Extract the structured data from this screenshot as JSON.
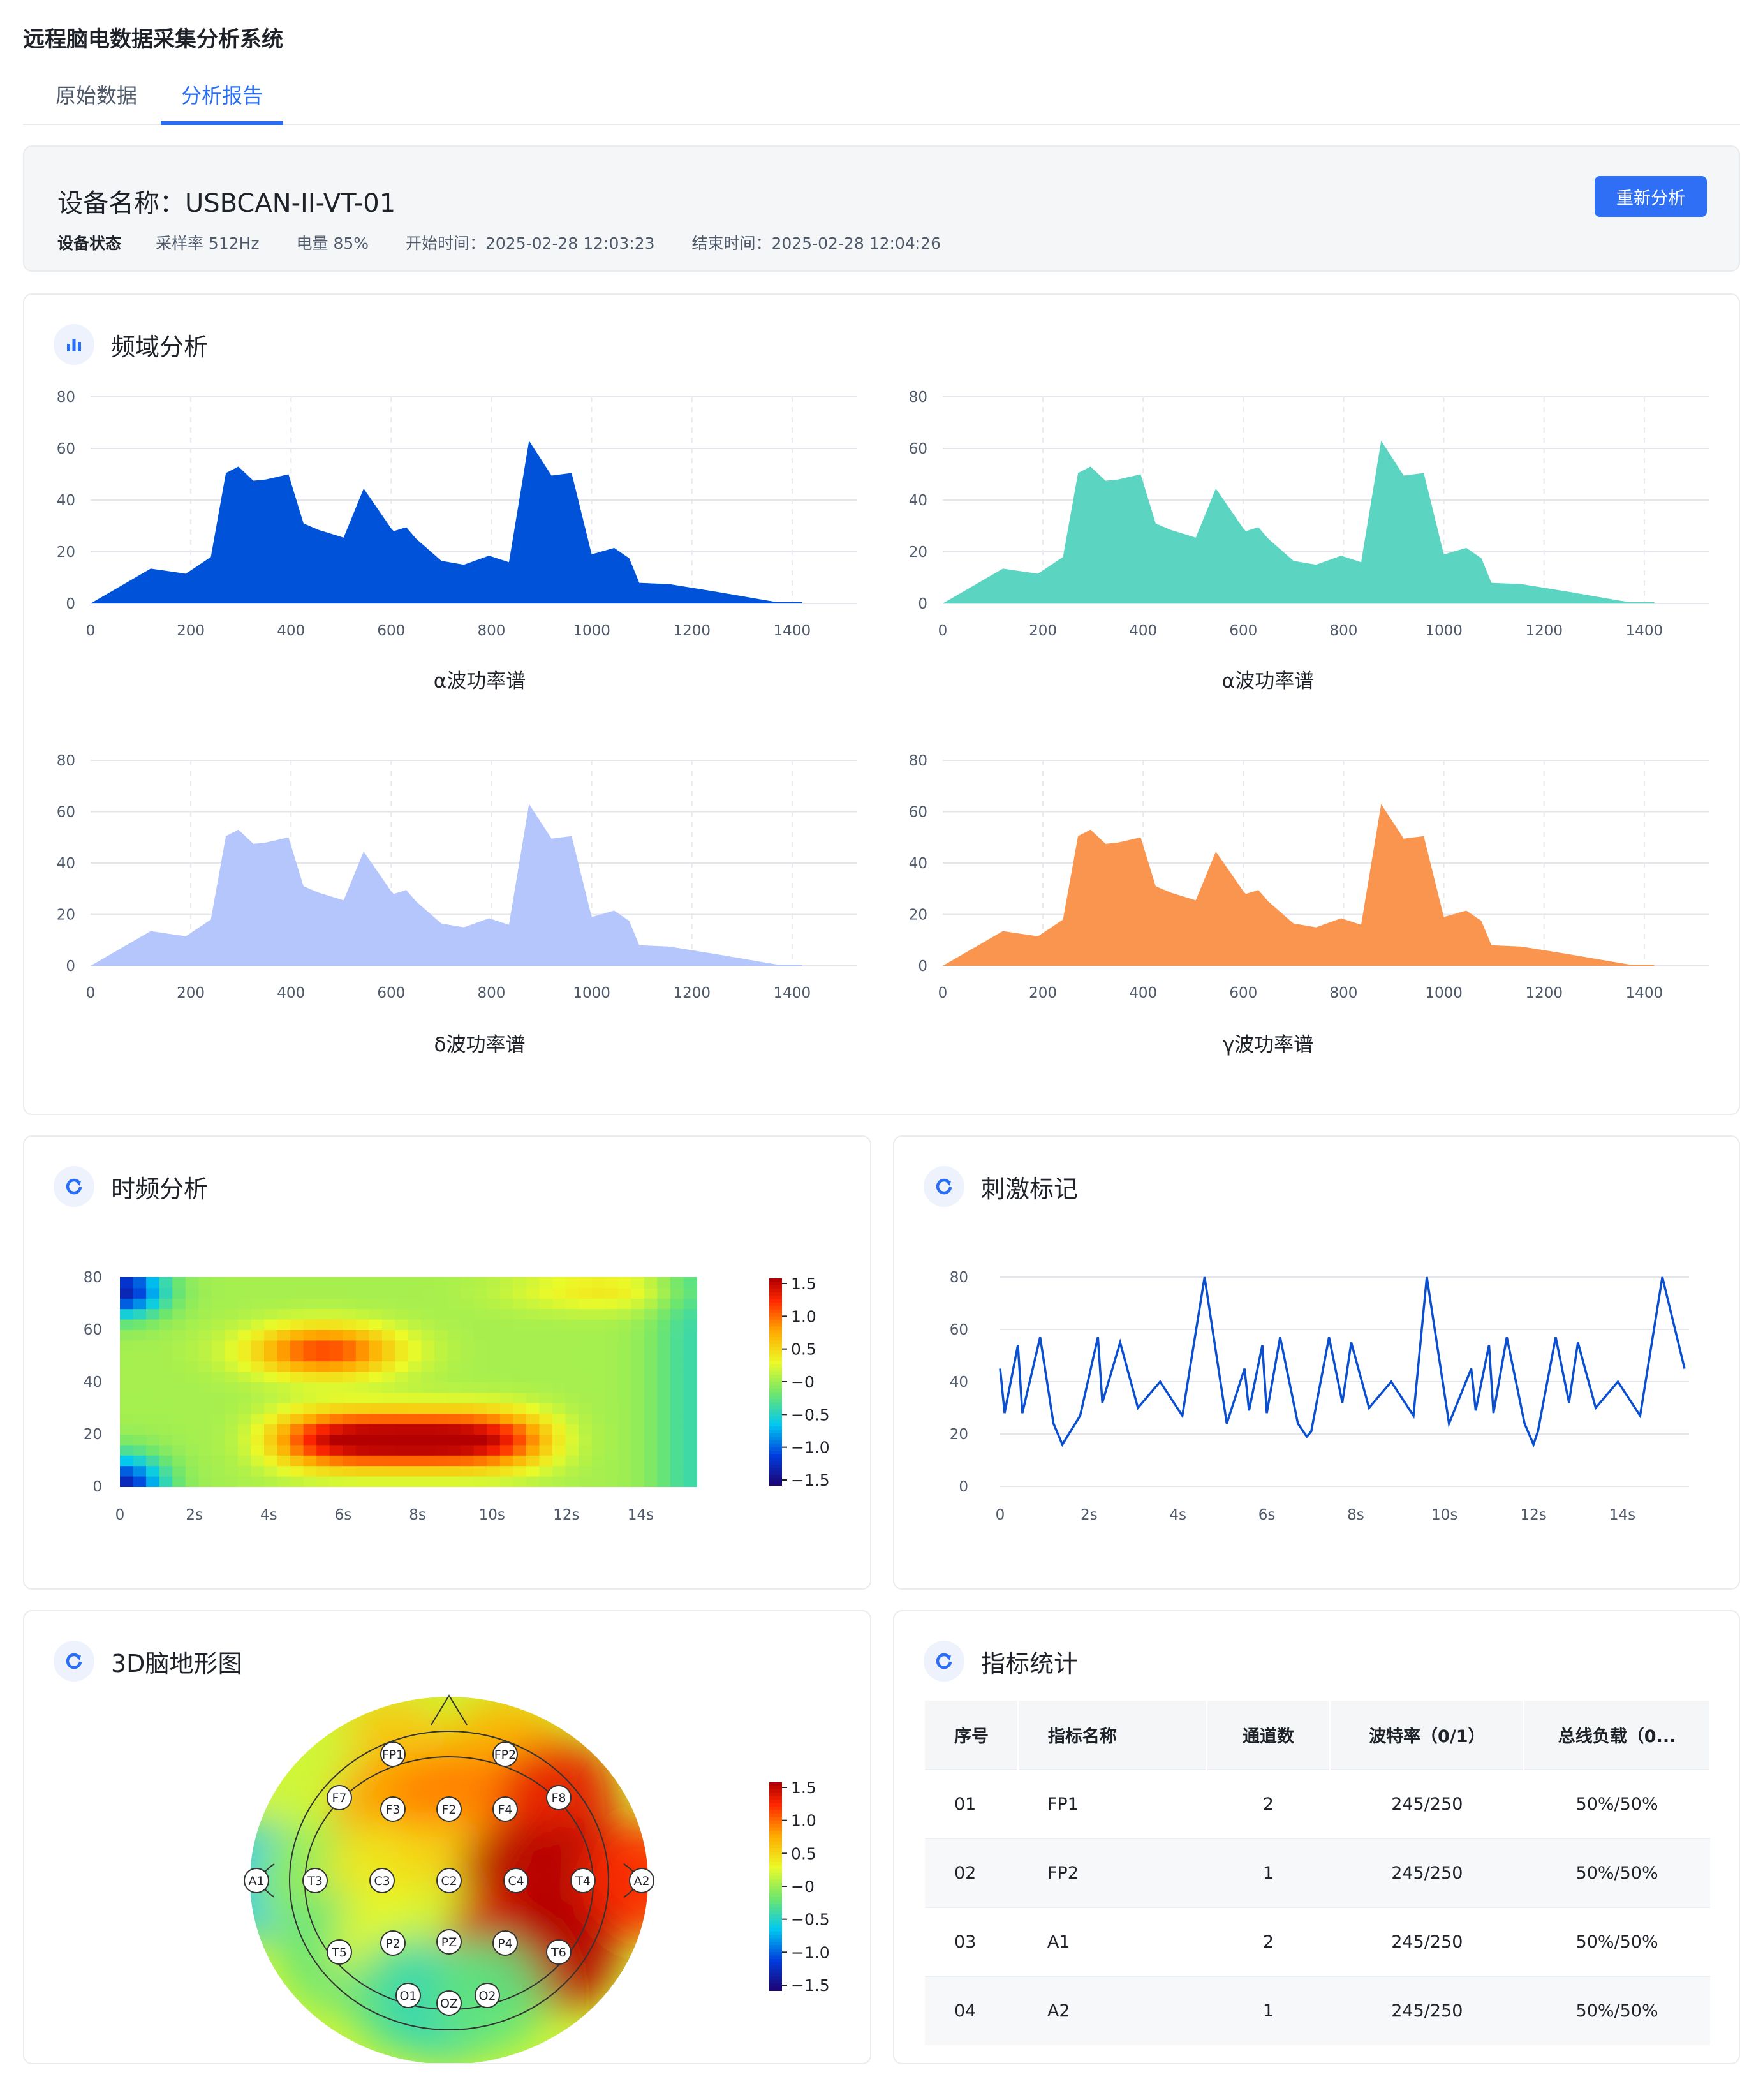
{
  "app_title": "远程脑电数据采集分析系统",
  "tabs": [
    {
      "label": "原始数据",
      "active": false
    },
    {
      "label": "分析报告",
      "active": true
    }
  ],
  "device": {
    "name": "设备名称：USBCAN-II-VT-01",
    "status_label": "设备状态",
    "sample_rate": "采样率 512Hz",
    "battery": "电量 85%",
    "start_time": "开始时间：2025-02-28  12:03:23",
    "end_time": "结束时间：2025-02-28 12:04:26",
    "reanalyze_label": "重新分析"
  },
  "sections": {
    "freq": "频域分析",
    "time_freq": "时频分析",
    "stimulus": "刺激标记",
    "topo": "3D脑地形图",
    "stats": "指标统计"
  },
  "colors": {
    "accent": "#2f6ff6",
    "alpha_fill": "#0053d9",
    "alpha2_fill": "#5cd4c2",
    "delta_fill": "#b4c6fb",
    "gamma_fill": "#fa9550",
    "stim_line": "#0a4fd0"
  },
  "chart_data": [
    {
      "type": "area",
      "title": "α波功率谱",
      "color": "#0053d9",
      "x": [
        0,
        120,
        190,
        240,
        270,
        295,
        325,
        350,
        395,
        425,
        455,
        505,
        545,
        600,
        605,
        630,
        650,
        700,
        745,
        795,
        835,
        875,
        920,
        960,
        1000,
        1045,
        1075,
        1095,
        1155,
        1250,
        1370,
        1420
      ],
      "y": [
        0,
        13.5,
        11.5,
        18,
        50.5,
        53,
        47.5,
        48,
        50,
        31,
        28.5,
        25.5,
        44.5,
        29,
        28,
        29.5,
        25,
        16.5,
        15,
        18.5,
        16,
        63,
        49.5,
        50.5,
        19,
        21.5,
        17.5,
        8,
        7.5,
        4.5,
        0.5,
        0.5
      ],
      "xlim": [
        0,
        1400
      ],
      "ylim": [
        0,
        80
      ],
      "xticks": [
        "0",
        "200",
        "400",
        "600",
        "800",
        "1000",
        "1200",
        "1400"
      ],
      "yticks": [
        "0",
        "20",
        "40",
        "60",
        "80"
      ]
    },
    {
      "type": "area",
      "title": "α波功率谱",
      "color": "#5cd4c2",
      "x": [
        0,
        120,
        190,
        240,
        270,
        295,
        325,
        350,
        395,
        425,
        455,
        505,
        545,
        600,
        605,
        630,
        650,
        700,
        745,
        795,
        835,
        875,
        920,
        960,
        1000,
        1045,
        1075,
        1095,
        1155,
        1250,
        1370,
        1420
      ],
      "y": [
        0,
        13.5,
        11.5,
        18,
        50.5,
        53,
        47.5,
        48,
        50,
        31,
        28.5,
        25.5,
        44.5,
        29,
        28,
        29.5,
        25,
        16.5,
        15,
        18.5,
        16,
        63,
        49.5,
        50.5,
        19,
        21.5,
        17.5,
        8,
        7.5,
        4.5,
        0.5,
        0.5
      ],
      "xlim": [
        0,
        1400
      ],
      "ylim": [
        0,
        80
      ],
      "xticks": [
        "0",
        "200",
        "400",
        "600",
        "800",
        "1000",
        "1200",
        "1400"
      ],
      "yticks": [
        "0",
        "20",
        "40",
        "60",
        "80"
      ]
    },
    {
      "type": "area",
      "title": "δ波功率谱",
      "color": "#b4c6fb",
      "x": [
        0,
        120,
        190,
        240,
        270,
        295,
        325,
        350,
        395,
        425,
        455,
        505,
        545,
        600,
        605,
        630,
        650,
        700,
        745,
        795,
        835,
        875,
        920,
        960,
        1000,
        1045,
        1075,
        1095,
        1155,
        1250,
        1370,
        1420
      ],
      "y": [
        0,
        13.5,
        11.5,
        18,
        50.5,
        53,
        47.5,
        48,
        50,
        31,
        28.5,
        25.5,
        44.5,
        29,
        28,
        29.5,
        25,
        16.5,
        15,
        18.5,
        16,
        63,
        49.5,
        50.5,
        19,
        21.5,
        17.5,
        8,
        7.5,
        4.5,
        0.5,
        0.5
      ],
      "xlim": [
        0,
        1400
      ],
      "ylim": [
        0,
        80
      ],
      "xticks": [
        "0",
        "200",
        "400",
        "600",
        "800",
        "1000",
        "1200",
        "1400"
      ],
      "yticks": [
        "0",
        "20",
        "40",
        "60",
        "80"
      ]
    },
    {
      "type": "area",
      "title": "γ波功率谱",
      "color": "#fa9550",
      "x": [
        0,
        120,
        190,
        240,
        270,
        295,
        325,
        350,
        395,
        425,
        455,
        505,
        545,
        600,
        605,
        630,
        650,
        700,
        745,
        795,
        835,
        875,
        920,
        960,
        1000,
        1045,
        1075,
        1095,
        1155,
        1250,
        1370,
        1420
      ],
      "y": [
        0,
        13.5,
        11.5,
        18,
        50.5,
        53,
        47.5,
        48,
        50,
        31,
        28.5,
        25.5,
        44.5,
        29,
        28,
        29.5,
        25,
        16.5,
        15,
        18.5,
        16,
        63,
        49.5,
        50.5,
        19,
        21.5,
        17.5,
        8,
        7.5,
        4.5,
        0.5,
        0.5
      ],
      "xlim": [
        0,
        1400
      ],
      "ylim": [
        0,
        80
      ],
      "xticks": [
        "0",
        "200",
        "400",
        "600",
        "800",
        "1000",
        "1200",
        "1400"
      ],
      "yticks": [
        "0",
        "20",
        "40",
        "60",
        "80"
      ]
    },
    {
      "type": "heatmap",
      "xticks": [
        "0",
        "2s",
        "4s",
        "6s",
        "8s",
        "10s",
        "12s",
        "14s"
      ],
      "yticks": [
        "0",
        "20",
        "40",
        "60",
        "80"
      ],
      "xlim": [
        0,
        15.5
      ],
      "ylim": [
        0,
        80
      ],
      "colorbar_ticks": [
        "1.5",
        "1.0",
        "0.5",
        "−0",
        "−0.5",
        "−1.0",
        "−1.5"
      ],
      "colorbar_range": [
        -1.5,
        1.5
      ]
    },
    {
      "type": "line",
      "color": "#0a4fd0",
      "x": [
        0,
        0.1,
        0.4,
        0.5,
        0.9,
        1.2,
        1.4,
        1.8,
        2.2,
        2.3,
        2.7,
        3.1,
        3.6,
        4.1,
        4.6,
        5.1,
        5.5,
        5.6,
        5.9,
        6.0,
        6.3,
        6.7,
        6.9,
        7.0,
        7.4,
        7.7,
        7.9,
        8.3,
        8.8,
        9.3,
        9.6,
        10.1,
        10.6,
        10.7,
        11.0,
        11.1,
        11.4,
        11.8,
        12.0,
        12.1,
        12.5,
        12.8,
        13.0,
        13.4,
        13.9,
        14.4,
        14.9,
        15.4
      ],
      "y": [
        45,
        28,
        54,
        28,
        57,
        24,
        16,
        27,
        57,
        32,
        55,
        30,
        40,
        27,
        80,
        24,
        45,
        29,
        54,
        28,
        57,
        24,
        19,
        21,
        57,
        32,
        55,
        30,
        40,
        27,
        80,
        24,
        45,
        29,
        54,
        28,
        57,
        24,
        16,
        21,
        57,
        32,
        55,
        30,
        40,
        27,
        80,
        45
      ],
      "xlim": [
        0,
        15.5
      ],
      "ylim": [
        0,
        80
      ],
      "xticks": [
        "0",
        "2s",
        "4s",
        "6s",
        "8s",
        "10s",
        "12s",
        "14s"
      ],
      "yticks": [
        "0",
        "20",
        "40",
        "60",
        "80"
      ]
    }
  ],
  "topo": {
    "electrodes": [
      {
        "label": "FP1",
        "value": 0.6
      },
      {
        "label": "FP2",
        "value": 0.7
      },
      {
        "label": "F7",
        "value": 0.2
      },
      {
        "label": "F3",
        "value": 0.8
      },
      {
        "label": "F2",
        "value": 0.9
      },
      {
        "label": "F4",
        "value": 0.9
      },
      {
        "label": "F8",
        "value": 1.3
      },
      {
        "label": "A1",
        "value": -0.6
      },
      {
        "label": "T3",
        "value": 0.0
      },
      {
        "label": "C3",
        "value": 0.4
      },
      {
        "label": "C2",
        "value": 0.5
      },
      {
        "label": "C4",
        "value": 1.5
      },
      {
        "label": "T4",
        "value": 1.6
      },
      {
        "label": "A2",
        "value": 1.2
      },
      {
        "label": "T5",
        "value": -0.2
      },
      {
        "label": "P2",
        "value": 0.3
      },
      {
        "label": "PZ",
        "value": 0.2
      },
      {
        "label": "P4",
        "value": 1.4
      },
      {
        "label": "T6",
        "value": 1.5
      },
      {
        "label": "O1",
        "value": -0.3
      },
      {
        "label": "OZ",
        "value": -0.4
      },
      {
        "label": "O2",
        "value": -0.2
      }
    ],
    "colorbar_ticks": [
      "1.5",
      "1.0",
      "0.5",
      "−0",
      "−0.5",
      "−1.0",
      "−1.5"
    ]
  },
  "stats": {
    "headers": [
      "序号",
      "指标名称",
      "通道数",
      "波特率（0/1）",
      "总线负载（0..."
    ],
    "rows": [
      [
        "01",
        "FP1",
        "2",
        "245/250",
        "50%/50%"
      ],
      [
        "02",
        "FP2",
        "1",
        "245/250",
        "50%/50%"
      ],
      [
        "03",
        "A1",
        "2",
        "245/250",
        "50%/50%"
      ],
      [
        "04",
        "A2",
        "1",
        "245/250",
        "50%/50%"
      ]
    ]
  }
}
